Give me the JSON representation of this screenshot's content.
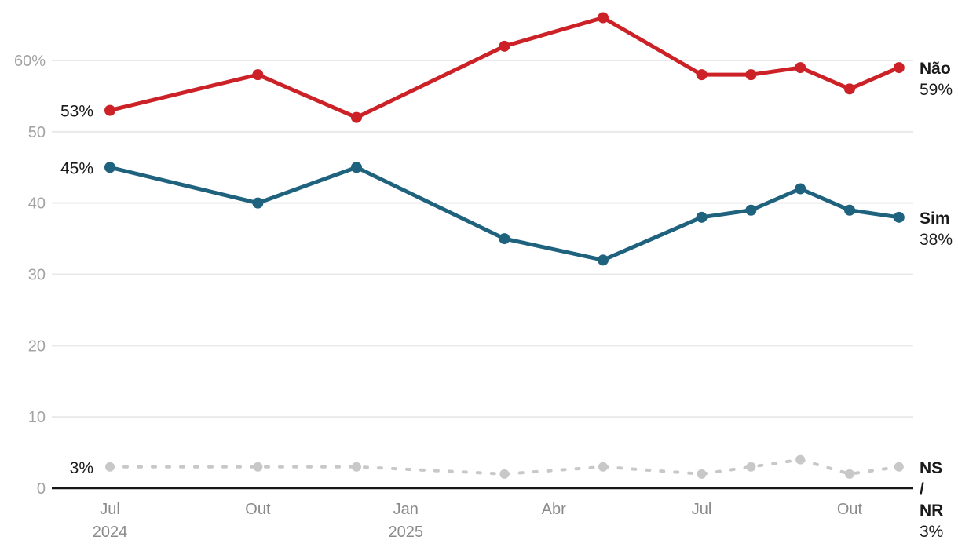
{
  "chart_data": {
    "type": "line",
    "title": "",
    "unit": "%",
    "x_months_from_first": [
      0,
      3,
      5,
      8,
      10,
      12,
      13,
      14,
      15,
      16
    ],
    "x_ticks": [
      {
        "month": 0,
        "label": "Jul",
        "sublabel": "2024"
      },
      {
        "month": 3,
        "label": "Out",
        "sublabel": ""
      },
      {
        "month": 6,
        "label": "Jan",
        "sublabel": "2025"
      },
      {
        "month": 9,
        "label": "Abr",
        "sublabel": ""
      },
      {
        "month": 12,
        "label": "Jul",
        "sublabel": ""
      },
      {
        "month": 15,
        "label": "Out",
        "sublabel": ""
      }
    ],
    "y_ticks": [
      {
        "value": 0,
        "label": "0"
      },
      {
        "value": 10,
        "label": "10"
      },
      {
        "value": 20,
        "label": "20"
      },
      {
        "value": 30,
        "label": "30"
      },
      {
        "value": 40,
        "label": "40"
      },
      {
        "value": 50,
        "label": "50"
      },
      {
        "value": 60,
        "label": "60%"
      }
    ],
    "ylim": [
      0,
      68
    ],
    "grid": "horizontal",
    "legend_position": "inline-right",
    "series": [
      {
        "name": "Não",
        "color": "#cb2127",
        "dashed": false,
        "values": [
          53,
          58,
          52,
          62,
          66,
          58,
          58,
          59,
          56,
          59
        ],
        "start_label": "53%",
        "end_lines": [
          "Não"
        ],
        "end_value": "59%"
      },
      {
        "name": "Sim",
        "color": "#1e627e",
        "dashed": false,
        "values": [
          45,
          40,
          45,
          35,
          32,
          38,
          39,
          42,
          39,
          38
        ],
        "start_label": "45%",
        "end_lines": [
          "Sim"
        ],
        "end_value": "38%"
      },
      {
        "name": "NS/NR",
        "color": "#c8c8c8",
        "dashed": true,
        "values": [
          3,
          3,
          3,
          2,
          3,
          2,
          3,
          4,
          2,
          3
        ],
        "start_label": "3%",
        "end_lines": [
          "NS",
          "/",
          "NR"
        ],
        "end_value": "3%"
      }
    ],
    "colors": {
      "grid": "#e9e9e9",
      "axis_line": "#161616",
      "y_tick_text": "#a3a3a3",
      "x_tick_text": "#8a8a8a",
      "label_text": "#1a1a1a"
    }
  }
}
